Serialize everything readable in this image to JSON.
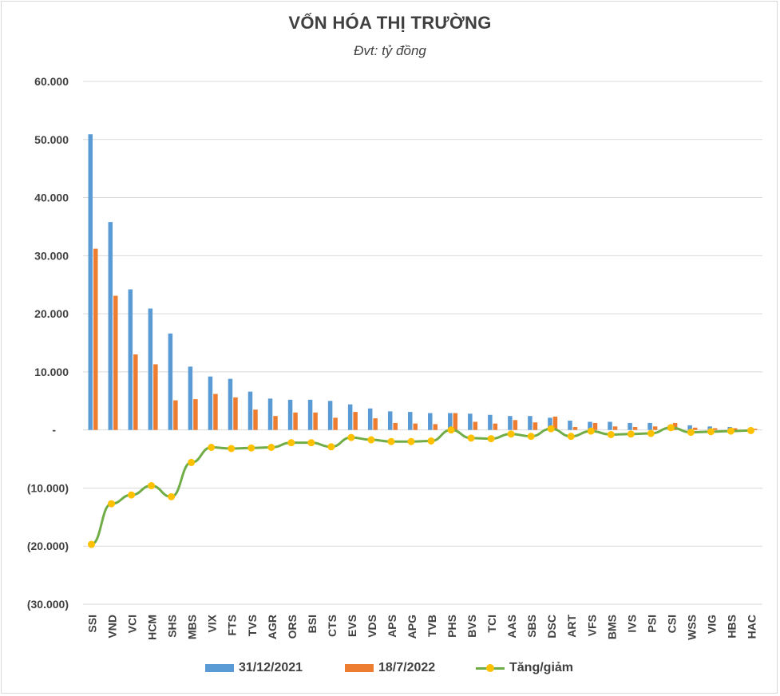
{
  "chart_data": {
    "type": "bar",
    "title": "VỐN HÓA THỊ TRƯỜNG",
    "subtitle": "Đvt: tỷ đồng",
    "categories": [
      "SSI",
      "VND",
      "VCI",
      "HCM",
      "SHS",
      "MBS",
      "VIX",
      "FTS",
      "TVS",
      "AGR",
      "ORS",
      "BSI",
      "CTS",
      "EVS",
      "VDS",
      "APS",
      "APG",
      "TVB",
      "PHS",
      "BVS",
      "TCI",
      "AAS",
      "SBS",
      "DSC",
      "ART",
      "VFS",
      "BMS",
      "IVS",
      "PSI",
      "CSI",
      "WSS",
      "VIG",
      "HBS",
      "HAC"
    ],
    "series": [
      {
        "name": "31/12/2021",
        "kind": "bar",
        "color": "#5b9bd5",
        "values": [
          50900,
          35800,
          24200,
          20900,
          16600,
          10900,
          9200,
          8800,
          6600,
          5400,
          5200,
          5200,
          5000,
          4400,
          3700,
          3200,
          3100,
          2900,
          2900,
          2800,
          2600,
          2400,
          2400,
          2100,
          1600,
          1400,
          1400,
          1200,
          1200,
          800,
          800,
          600,
          500,
          300
        ]
      },
      {
        "name": "18/7/2022",
        "kind": "bar",
        "color": "#ed7d31",
        "values": [
          31200,
          23100,
          13000,
          11300,
          5100,
          5300,
          6200,
          5600,
          3500,
          2400,
          3000,
          3000,
          2100,
          3100,
          2000,
          1200,
          1100,
          1000,
          2900,
          1400,
          1100,
          1700,
          1300,
          2300,
          500,
          1200,
          600,
          500,
          600,
          1200,
          400,
          300,
          300,
          200
        ]
      },
      {
        "name": "Tăng/giảm",
        "kind": "line",
        "color": "#70ad47",
        "marker_color": "#ffc000",
        "values": [
          -19700,
          -12700,
          -11200,
          -9600,
          -11500,
          -5600,
          -3000,
          -3200,
          -3100,
          -3000,
          -2200,
          -2200,
          -2900,
          -1300,
          -1700,
          -2000,
          -2000,
          -1900,
          0,
          -1400,
          -1500,
          -700,
          -1100,
          200,
          -1100,
          -200,
          -800,
          -700,
          -600,
          400,
          -400,
          -300,
          -200,
          -100
        ]
      }
    ],
    "ylim": [
      -30000,
      60000
    ],
    "yticks": [
      {
        "value": 60000,
        "label": "60.000"
      },
      {
        "value": 50000,
        "label": "50.000"
      },
      {
        "value": 40000,
        "label": "40.000"
      },
      {
        "value": 30000,
        "label": "30.000"
      },
      {
        "value": 20000,
        "label": "20.000"
      },
      {
        "value": 10000,
        "label": "10.000"
      },
      {
        "value": 0,
        "label": "-"
      },
      {
        "value": -10000,
        "label": "(10.000)"
      },
      {
        "value": -20000,
        "label": "(20.000)"
      },
      {
        "value": -30000,
        "label": "(30.000)"
      }
    ],
    "grid": true,
    "legend": "bottom",
    "gridline_color": "#d9d9d9"
  }
}
